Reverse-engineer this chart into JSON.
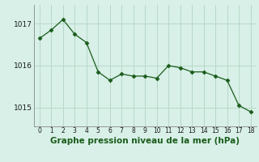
{
  "x": [
    0,
    1,
    2,
    3,
    4,
    5,
    6,
    7,
    8,
    9,
    10,
    11,
    12,
    13,
    14,
    15,
    16,
    17,
    18
  ],
  "y": [
    1016.65,
    1016.85,
    1017.1,
    1016.75,
    1016.55,
    1015.85,
    1015.65,
    1015.8,
    1015.75,
    1015.75,
    1015.7,
    1016.0,
    1015.95,
    1015.85,
    1015.85,
    1015.75,
    1015.65,
    1015.05,
    1014.9
  ],
  "line_color": "#1a5c1a",
  "marker": "D",
  "marker_size": 2.5,
  "bg_color": "#d8f0e8",
  "grid_color": "#b8d8c8",
  "xlabel": "Graphe pression niveau de la mer (hPa)",
  "xlabel_fontsize": 7.5,
  "ytick_labels": [
    "1015",
    "1016",
    "1017"
  ],
  "yticks": [
    1015,
    1016,
    1017
  ],
  "ylim": [
    1014.55,
    1017.45
  ],
  "xlim": [
    -0.5,
    18.5
  ]
}
